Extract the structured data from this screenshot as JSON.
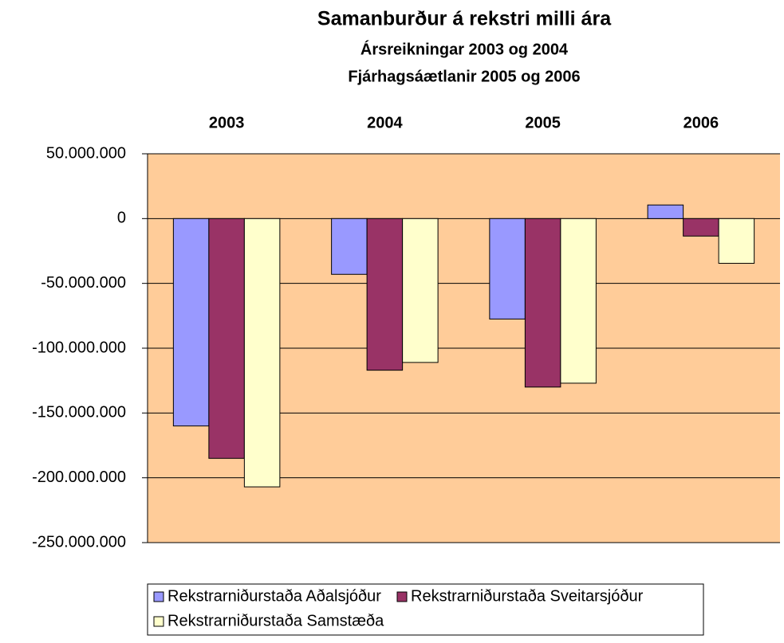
{
  "chart_data": {
    "type": "bar",
    "title": "Samanburður á rekstri milli ára",
    "subtitle": [
      "Ársreikningar 2003 og 2004",
      "Fjárhagsáætlanir 2005 og 2006"
    ],
    "categories": [
      "2003",
      "2004",
      "2005",
      "2006"
    ],
    "series": [
      {
        "name": "Rekstrarniðurstaða Aðalsjóður",
        "color": "#9999ff",
        "values": [
          -160000000,
          -43000000,
          -77500000,
          10500000
        ]
      },
      {
        "name": "Rekstrarniðurstaða Sveitarsjóður",
        "color": "#993366",
        "values": [
          -185000000,
          -117000000,
          -130000000,
          -13500000
        ]
      },
      {
        "name": "Rekstrarniðurstaða Samstæða",
        "color": "#ffffcc",
        "values": [
          -207000000,
          -111000000,
          -127000000,
          -34500000
        ]
      }
    ],
    "ylim": [
      -250000000,
      50000000
    ],
    "yticks": [
      {
        "value": 50000000,
        "label": "50.000.000"
      },
      0,
      {
        "value": -50000000,
        "label": "-50.000.000"
      },
      {
        "value": -100000000,
        "label": "-100.000.000"
      },
      {
        "value": -150000000,
        "label": "-150.000.000"
      },
      {
        "value": -200000000,
        "label": "-200.000.000"
      },
      {
        "value": -250000000,
        "label": "-250.000.000"
      }
    ],
    "grid": true,
    "plot_background": "#ffcc99",
    "negative_tick_color": "#ff0000",
    "category_labels_position": "top",
    "legend": "bottom"
  }
}
